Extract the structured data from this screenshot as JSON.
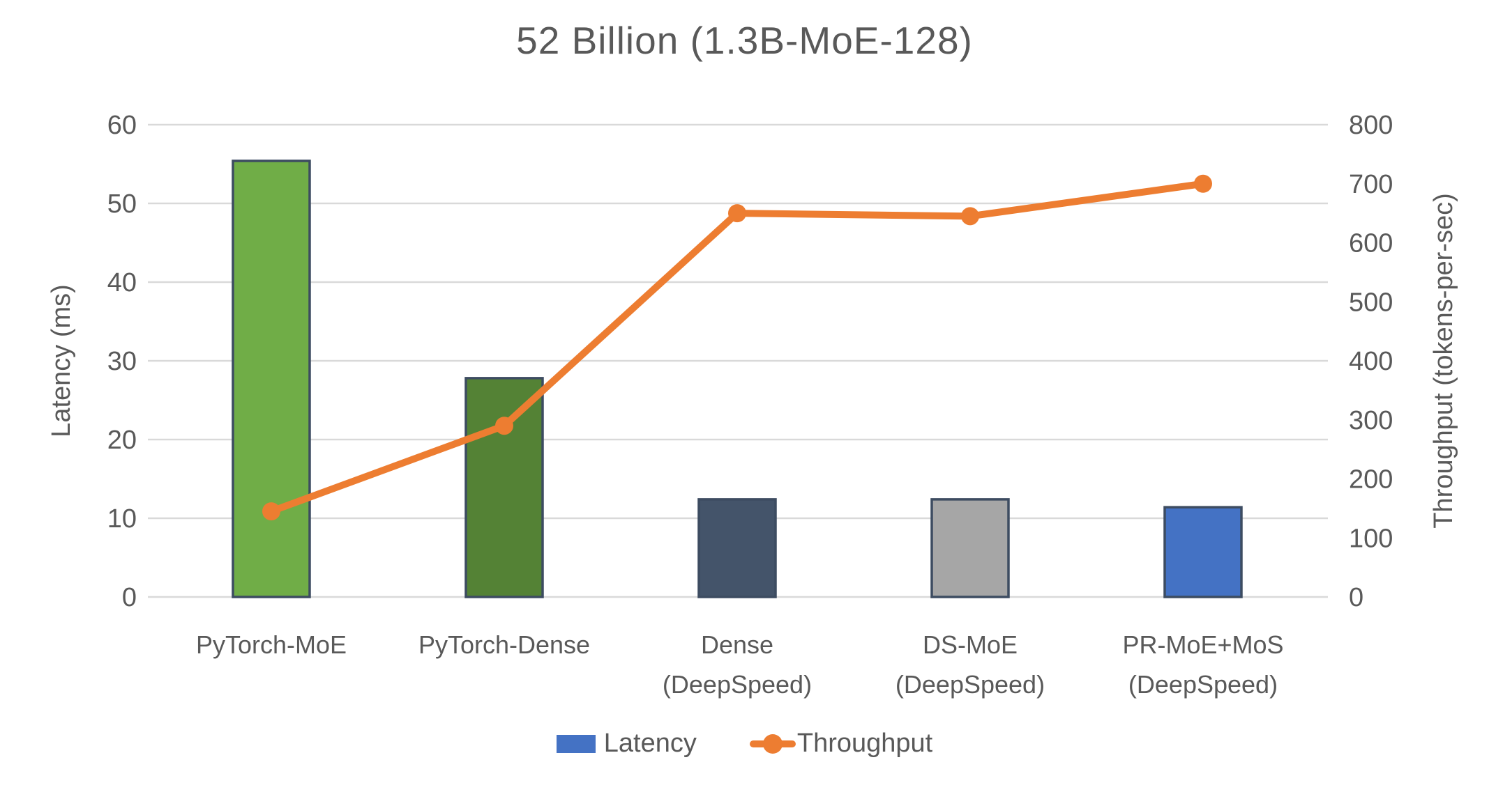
{
  "styles": {
    "text_color": "#595959",
    "gridline_color": "#D9D9D9",
    "background": "#FFFFFF"
  },
  "chart_data": {
    "type": "combo-bar-line",
    "title": "52 Billion (1.3B-MoE-128)",
    "categories": [
      "PyTorch-MoE",
      "PyTorch-Dense",
      "Dense (DeepSpeed)",
      "DS-MoE (DeepSpeed)",
      "PR-MoE+MoS (DeepSpeed)"
    ],
    "category_lines": [
      [
        "PyTorch-MoE"
      ],
      [
        "PyTorch-Dense"
      ],
      [
        "Dense",
        "(DeepSpeed)"
      ],
      [
        "DS-MoE",
        "(DeepSpeed)"
      ],
      [
        "PR-MoE+MoS",
        "(DeepSpeed)"
      ]
    ],
    "series": [
      {
        "name": "Latency",
        "type": "bar",
        "axis": "left",
        "values": [
          55.4,
          27.8,
          12.4,
          12.4,
          11.4
        ],
        "bar_colors": [
          "#70AD47",
          "#548235",
          "#44546A",
          "#A6A6A6",
          "#4472C4"
        ],
        "bar_border": "#3D4C61"
      },
      {
        "name": "Throughput",
        "type": "line",
        "axis": "right",
        "values": [
          145,
          290,
          650,
          645,
          700
        ],
        "color": "#ED7D31"
      }
    ],
    "left_axis": {
      "label": "Latency (ms)",
      "min": 0,
      "max": 60,
      "tick_step": 10,
      "ticks": [
        0,
        10,
        20,
        30,
        40,
        50,
        60
      ]
    },
    "right_axis": {
      "label": "Throughput (tokens-per-sec)",
      "min": 0,
      "max": 800,
      "tick_step": 100,
      "ticks": [
        0,
        100,
        200,
        300,
        400,
        500,
        600,
        700,
        800
      ]
    },
    "grid": true,
    "legend_position": "bottom"
  },
  "legend": {
    "items": [
      {
        "label": "Latency",
        "swatch": "bar",
        "color": "#4472C4"
      },
      {
        "label": "Throughput",
        "swatch": "line-marker",
        "color": "#ED7D31"
      }
    ]
  }
}
